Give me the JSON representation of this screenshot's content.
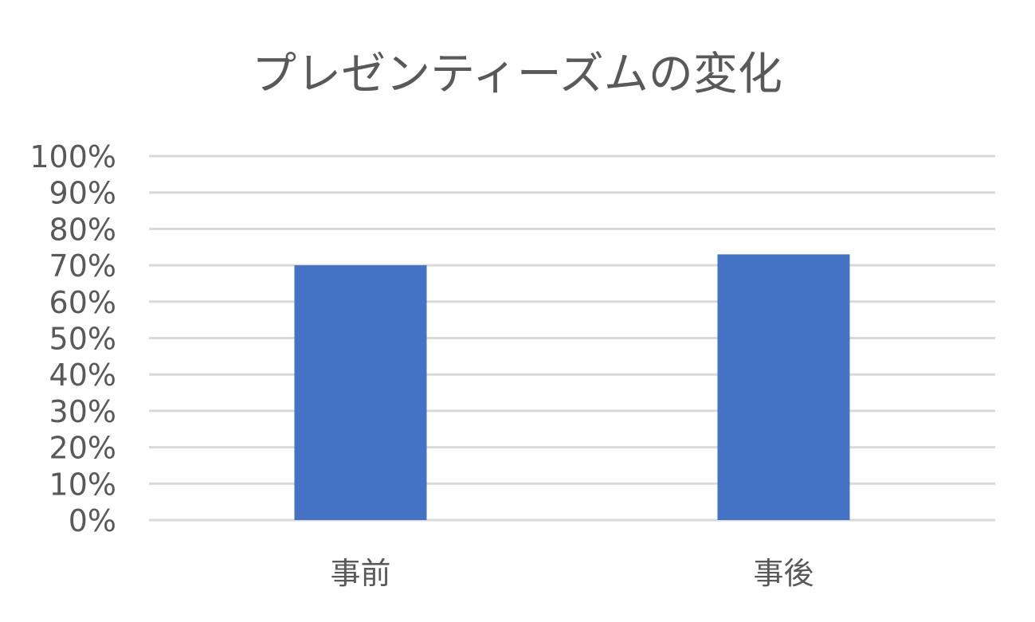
{
  "chart_data": {
    "type": "bar",
    "title": "プレゼンティーズムの変化",
    "xlabel": "",
    "ylabel": "",
    "categories": [
      "事前",
      "事後"
    ],
    "values": [
      0.7,
      0.73
    ],
    "ylim": [
      0,
      1
    ],
    "yticks": [
      0,
      0.1,
      0.2,
      0.3,
      0.4,
      0.5,
      0.6,
      0.7,
      0.8,
      0.9,
      1.0
    ],
    "ytick_labels": [
      "0%",
      "10%",
      "20%",
      "30%",
      "40%",
      "50%",
      "60%",
      "70%",
      "80%",
      "90%",
      "100%"
    ],
    "grid": true,
    "legend": "none",
    "bar_color": "#4472C4"
  }
}
